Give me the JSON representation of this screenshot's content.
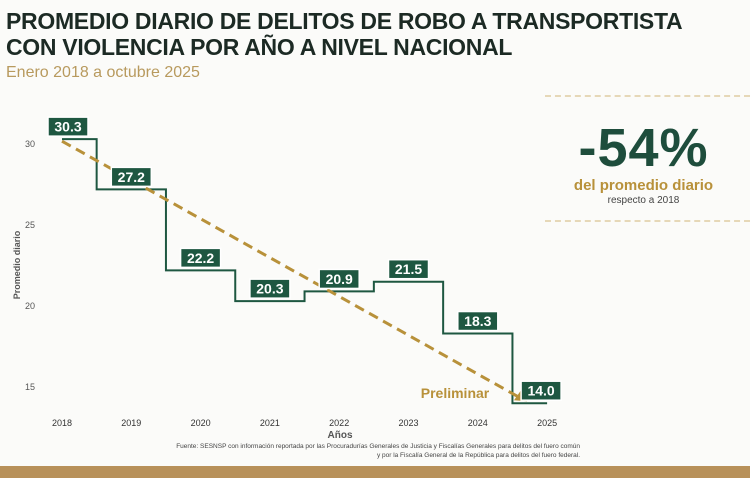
{
  "header": {
    "title_line1": "PROMEDIO DIARIO DE DELITOS DE ROBO A TRANSPORTISTA",
    "title_line2": "CON VIOLENCIA POR AÑO A NIVEL NACIONAL",
    "subtitle": "Enero 2018 a octubre 2025"
  },
  "callout": {
    "value": "-54%",
    "line1": "del promedio diario",
    "line2": "respecto a 2018"
  },
  "source": {
    "line1": "Fuente: SESNSP con información reportada por las Procuradurías Generales de Justicia y Fiscalías Generales para delitos del fuero común",
    "line2": "y por la Fiscalía General de la República para delitos del fuero federal."
  },
  "chart_data": {
    "type": "line",
    "step": true,
    "categories": [
      "2018",
      "2019",
      "2020",
      "2021",
      "2022",
      "2023",
      "2024",
      "2025"
    ],
    "values": [
      30.3,
      27.2,
      22.2,
      20.3,
      20.9,
      21.5,
      18.3,
      14.0
    ],
    "labels": [
      "30.3",
      "27.2",
      "22.2",
      "20.3",
      "20.9",
      "21.5",
      "18.3",
      "14.0"
    ],
    "xlabel": "Años",
    "ylabel": "Promedio diario",
    "yticks": [
      15,
      20,
      25,
      30
    ],
    "ylim": [
      13.5,
      31.5
    ],
    "trend_annotation": "Preliminar",
    "trend": {
      "from": 30.3,
      "to": 14.0
    },
    "colors": {
      "line": "#1e5741",
      "label_bg": "#1e5741",
      "trend": "#b8913a"
    }
  }
}
